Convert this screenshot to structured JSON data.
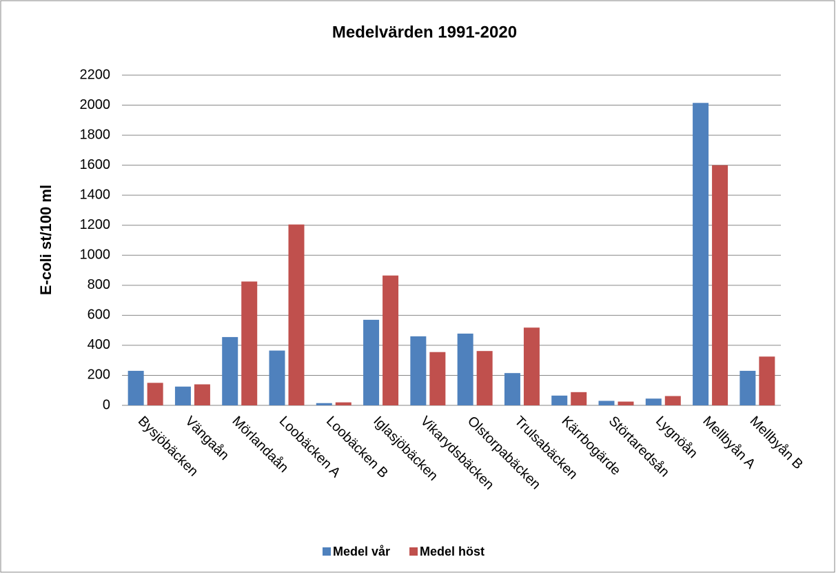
{
  "chart_data": {
    "type": "bar",
    "title": "Medelvärden 1991-2020",
    "y_label": "E-coli st/100 ml",
    "categories": [
      "Bysjöbäcken",
      "Vängaån",
      "Mörlandaån",
      "Loobäcken A",
      "Loobäcken B",
      "Iglasjöbäcken",
      "Vikarydsbäcken",
      "Olstorpabäcken",
      "Trulsabäcken",
      "Kärrbogärde",
      "Störtaredsån",
      "Lygnöån",
      "Mellbyån A",
      "Mellbyån B"
    ],
    "series": [
      {
        "name": "Medel vår",
        "color": "#4f81bd",
        "values": [
          230,
          125,
          455,
          365,
          15,
          570,
          460,
          478,
          215,
          65,
          30,
          45,
          2015,
          230
        ]
      },
      {
        "name": "Medel höst",
        "color": "#c0504d",
        "values": [
          150,
          140,
          825,
          1205,
          20,
          865,
          355,
          362,
          518,
          88,
          25,
          62,
          1600,
          325
        ]
      }
    ],
    "ylim": [
      0,
      2200
    ],
    "yticks": [
      0,
      200,
      400,
      600,
      800,
      1000,
      1200,
      1400,
      1600,
      1800,
      2000,
      2200
    ],
    "grid": true,
    "legend": "bottom"
  }
}
